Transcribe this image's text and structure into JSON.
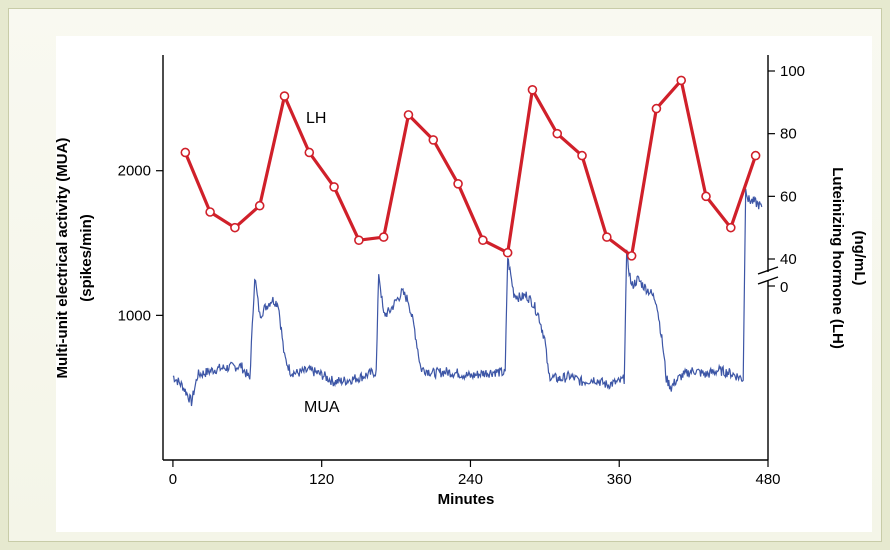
{
  "chart_data": {
    "type": "line",
    "x_axis": {
      "label": "Minutes",
      "ticks": [
        0,
        120,
        240,
        360,
        480
      ],
      "range": [
        -8,
        480
      ]
    },
    "y_left_axis": {
      "label_line1": "Multi-unit electrical activity (MUA)",
      "label_line2": "(spikes/min)",
      "ticks": [
        1000,
        2000
      ],
      "range": [
        0,
        2800
      ]
    },
    "y_right_axis": {
      "label_line1": "Luteinizing hormone (LH)",
      "label_line2": "(ng/mL)",
      "ticks": [
        40,
        60,
        80,
        100
      ],
      "lower_tick": 0,
      "range": [
        40,
        100
      ],
      "broken": true
    },
    "series": [
      {
        "name": "LH",
        "axis": "right",
        "color": "#d0202a",
        "marker": "open-circle",
        "x": [
          10,
          30,
          50,
          70,
          90,
          110,
          130,
          150,
          170,
          190,
          210,
          230,
          250,
          270,
          290,
          310,
          330,
          350,
          370,
          390,
          410,
          430,
          450,
          470
        ],
        "y": [
          74,
          55,
          50,
          57,
          92,
          74,
          63,
          46,
          47,
          86,
          78,
          64,
          46,
          42,
          94,
          80,
          73,
          47,
          41,
          88,
          97,
          60,
          50,
          73
        ]
      },
      {
        "name": "MUA",
        "axis": "left",
        "color": "#3d56a6",
        "x": [
          0,
          8,
          15,
          20,
          25,
          35,
          45,
          55,
          62,
          66,
          70,
          75,
          80,
          85,
          90,
          95,
          100,
          110,
          120,
          130,
          140,
          150,
          160,
          164,
          166,
          170,
          175,
          180,
          185,
          190,
          195,
          200,
          205,
          210,
          220,
          230,
          240,
          250,
          260,
          268,
          270,
          275,
          280,
          285,
          290,
          295,
          300,
          303,
          306,
          312,
          320,
          330,
          340,
          350,
          360,
          364,
          366,
          370,
          375,
          380,
          385,
          390,
          395,
          398,
          402,
          405,
          410,
          420,
          430,
          440,
          450,
          460,
          462,
          464,
          470,
          475
        ],
        "y": [
          580,
          510,
          400,
          590,
          600,
          630,
          640,
          650,
          560,
          1270,
          1000,
          1060,
          1110,
          1080,
          710,
          610,
          600,
          620,
          590,
          540,
          550,
          570,
          600,
          610,
          1300,
          1000,
          1030,
          1100,
          1160,
          1100,
          900,
          630,
          620,
          600,
          610,
          600,
          580,
          600,
          610,
          600,
          1400,
          1150,
          1120,
          1140,
          1090,
          1000,
          830,
          590,
          570,
          560,
          580,
          540,
          560,
          520,
          540,
          560,
          1420,
          1200,
          1250,
          1200,
          1160,
          1100,
          800,
          560,
          500,
          540,
          580,
          620,
          590,
          620,
          600,
          560,
          1900,
          1800,
          1780,
          1750
        ]
      }
    ]
  }
}
